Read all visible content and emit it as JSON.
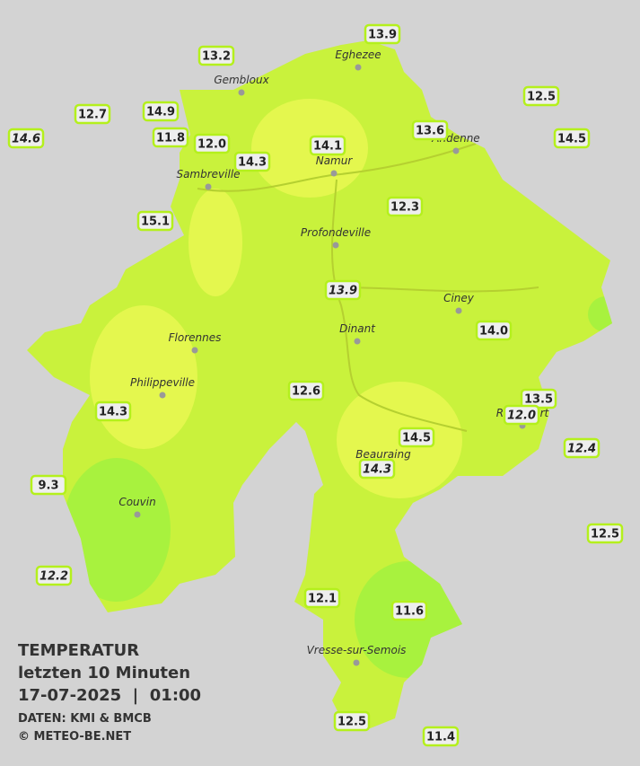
{
  "map": {
    "stations": [
      {
        "value": "13.9"
      },
      {
        "value": "13.2"
      },
      {
        "value": "12.5"
      },
      {
        "value": "12.7"
      },
      {
        "value": "14.9"
      },
      {
        "value": "14.6",
        "italic": true
      },
      {
        "value": "11.8"
      },
      {
        "value": "12.0"
      },
      {
        "value": "13.6"
      },
      {
        "value": "14.1"
      },
      {
        "value": "14.5"
      },
      {
        "value": "14.3"
      },
      {
        "value": "12.3"
      },
      {
        "value": "15.1"
      },
      {
        "value": "13.9",
        "italic": true
      },
      {
        "value": "14.0"
      },
      {
        "value": "12.6"
      },
      {
        "value": "13.5"
      },
      {
        "value": "14.3"
      },
      {
        "value": "12.0",
        "italic": true
      },
      {
        "value": "14.5"
      },
      {
        "value": "12.4",
        "italic": true
      },
      {
        "value": "14.3",
        "italic": true
      },
      {
        "value": "9.3"
      },
      {
        "value": "12.5"
      },
      {
        "value": "12.2",
        "italic": true
      },
      {
        "value": "12.1"
      },
      {
        "value": "11.6"
      },
      {
        "value": "12.5"
      },
      {
        "value": "11.4"
      }
    ],
    "towns": [
      "Eghezee",
      "Gembloux",
      "Andenne",
      "Namur",
      "Sambreville",
      "Profondeville",
      "Ciney",
      "Dinant",
      "Florennes",
      "Philippeville",
      "Rochefort",
      "Beauraing",
      "Couvin",
      "Vresse-sur-Semois"
    ]
  },
  "caption": {
    "title": "TEMPERATUR",
    "period": "letzten 10 Minuten",
    "datetime": "17-07-2025  |  01:00",
    "source": "DATEN: KMI & BMCB",
    "copyright": "© METEO-BE.NET"
  }
}
